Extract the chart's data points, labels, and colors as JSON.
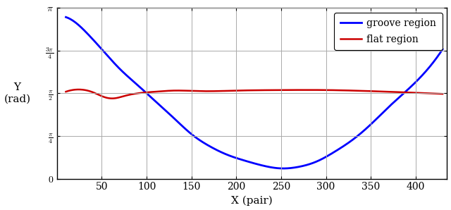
{
  "xlabel": "X (pair)",
  "xlim": [
    0,
    435
  ],
  "ylim": [
    0,
    3.14159265358979
  ],
  "xticks": [
    50,
    100,
    150,
    200,
    250,
    300,
    350,
    400
  ],
  "ytick_vals": [
    0,
    0.7853981633974483,
    1.5707963267948966,
    2.356194490192345,
    3.14159265358979
  ],
  "ytick_labels": [
    "$0$",
    "$\\frac{\\pi}{4}$",
    "$\\frac{\\pi}{2}$",
    "$\\frac{3\\pi}{4}$",
    "$\\pi$"
  ],
  "groove_color": "#0000ff",
  "flat_color": "#cc0000",
  "legend_groove": "groove region",
  "legend_flat": "flat region",
  "background_color": "#ffffff",
  "grid_color": "#aaaaaa",
  "groove_x": [
    10,
    20,
    35,
    50,
    70,
    90,
    110,
    130,
    150,
    170,
    190,
    210,
    230,
    250,
    270,
    290,
    310,
    330,
    350,
    370,
    390,
    410,
    430
  ],
  "groove_y": [
    2.97,
    2.88,
    2.65,
    2.38,
    2.02,
    1.72,
    1.42,
    1.12,
    0.82,
    0.6,
    0.44,
    0.33,
    0.24,
    0.19,
    0.22,
    0.32,
    0.5,
    0.72,
    1.0,
    1.32,
    1.62,
    1.95,
    2.38
  ],
  "flat_x": [
    10,
    25,
    40,
    55,
    65,
    75,
    90,
    110,
    130,
    160,
    200,
    250,
    300,
    350,
    400,
    430
  ],
  "flat_y": [
    1.6,
    1.64,
    1.59,
    1.49,
    1.48,
    1.52,
    1.57,
    1.6,
    1.62,
    1.61,
    1.62,
    1.63,
    1.63,
    1.61,
    1.58,
    1.56
  ]
}
